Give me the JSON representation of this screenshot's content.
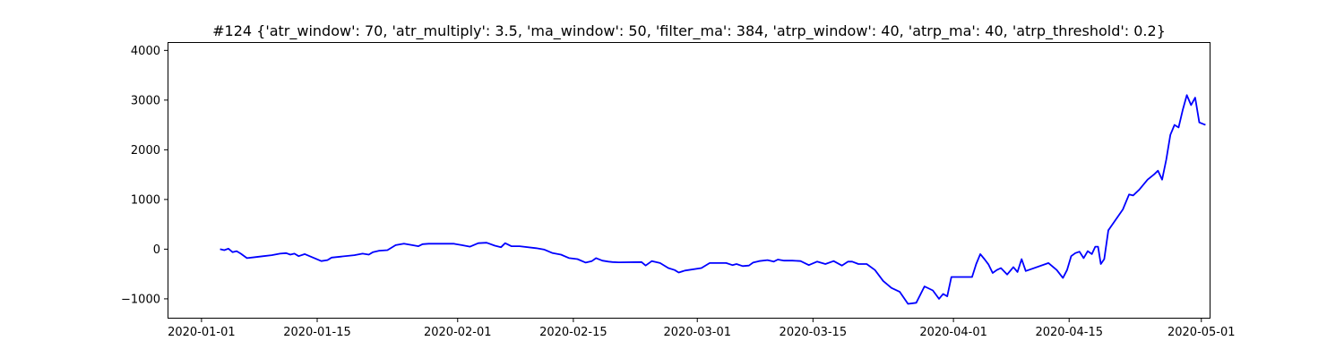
{
  "chart_data": {
    "type": "line",
    "title": "#124 {'atr_window': 70, 'atr_multiply': 3.5, 'ma_window': 50, 'filter_ma': 384, 'atrp_window': 40, 'atrp_ma': 40, 'atrp_threshold': 0.2}",
    "xlabel": "",
    "ylabel": "",
    "x_ticks": [
      "2020-01-01",
      "2020-01-15",
      "2020-02-01",
      "2020-02-15",
      "2020-03-01",
      "2020-03-15",
      "2020-04-01",
      "2020-04-15",
      "2020-05-01"
    ],
    "y_ticks": [
      -1000,
      0,
      1000,
      2000,
      3000,
      4000
    ],
    "xlim": [
      "2019-12-28",
      "2020-05-02"
    ],
    "ylim": [
      -1380,
      4150
    ],
    "grid": false,
    "line_color": "#0000ff",
    "series": [
      {
        "points": [
          [
            "2020-01-03",
            0
          ],
          [
            "2020-01-03",
            -20
          ],
          [
            "2020-01-04",
            10
          ],
          [
            "2020-01-04",
            -60
          ],
          [
            "2020-01-05",
            -40
          ],
          [
            "2020-01-05",
            -90
          ],
          [
            "2020-01-06",
            -180
          ],
          [
            "2020-01-07",
            -160
          ],
          [
            "2020-01-08",
            -140
          ],
          [
            "2020-01-09",
            -120
          ],
          [
            "2020-01-10",
            -90
          ],
          [
            "2020-01-11",
            -80
          ],
          [
            "2020-01-11",
            -110
          ],
          [
            "2020-01-12",
            -90
          ],
          [
            "2020-01-12",
            -140
          ],
          [
            "2020-01-13",
            -100
          ],
          [
            "2020-01-14",
            -170
          ],
          [
            "2020-01-15",
            -240
          ],
          [
            "2020-01-16",
            -220
          ],
          [
            "2020-01-16",
            -170
          ],
          [
            "2020-01-19",
            -120
          ],
          [
            "2020-01-20",
            -90
          ],
          [
            "2020-01-21",
            -110
          ],
          [
            "2020-01-21",
            -60
          ],
          [
            "2020-01-22",
            -30
          ],
          [
            "2020-01-23",
            -20
          ],
          [
            "2020-01-24",
            80
          ],
          [
            "2020-01-25",
            110
          ],
          [
            "2020-01-26",
            80
          ],
          [
            "2020-01-27",
            60
          ],
          [
            "2020-01-27",
            100
          ],
          [
            "2020-01-28",
            110
          ],
          [
            "2020-01-31",
            110
          ],
          [
            "2020-02-01",
            80
          ],
          [
            "2020-02-02",
            50
          ],
          [
            "2020-02-03",
            120
          ],
          [
            "2020-02-04",
            130
          ],
          [
            "2020-02-05",
            70
          ],
          [
            "2020-02-06",
            40
          ],
          [
            "2020-02-06",
            120
          ],
          [
            "2020-02-07",
            60
          ],
          [
            "2020-02-08",
            60
          ],
          [
            "2020-02-10",
            20
          ],
          [
            "2020-02-11",
            -10
          ],
          [
            "2020-02-12",
            -80
          ],
          [
            "2020-02-13",
            -110
          ],
          [
            "2020-02-14",
            -180
          ],
          [
            "2020-02-15",
            -200
          ],
          [
            "2020-02-16",
            -270
          ],
          [
            "2020-02-17",
            -240
          ],
          [
            "2020-02-17",
            -180
          ],
          [
            "2020-02-18",
            -230
          ],
          [
            "2020-02-19",
            -250
          ],
          [
            "2020-02-19",
            -260
          ],
          [
            "2020-02-20",
            -265
          ],
          [
            "2020-02-23",
            -260
          ],
          [
            "2020-02-23",
            -330
          ],
          [
            "2020-02-24",
            -240
          ],
          [
            "2020-02-25",
            -280
          ],
          [
            "2020-02-26",
            -380
          ],
          [
            "2020-02-27",
            -420
          ],
          [
            "2020-02-27",
            -470
          ],
          [
            "2020-02-28",
            -430
          ],
          [
            "2020-03-01",
            -380
          ],
          [
            "2020-03-02",
            -280
          ],
          [
            "2020-03-04",
            -280
          ],
          [
            "2020-03-05",
            -320
          ],
          [
            "2020-03-05",
            -300
          ],
          [
            "2020-03-06",
            -340
          ],
          [
            "2020-03-07",
            -330
          ],
          [
            "2020-03-07",
            -270
          ],
          [
            "2020-03-08",
            -240
          ],
          [
            "2020-03-09",
            -220
          ],
          [
            "2020-03-10",
            -250
          ],
          [
            "2020-03-10",
            -210
          ],
          [
            "2020-03-11",
            -230
          ],
          [
            "2020-03-12",
            -230
          ],
          [
            "2020-03-13",
            -240
          ],
          [
            "2020-03-14",
            -320
          ],
          [
            "2020-03-15",
            -250
          ],
          [
            "2020-03-16",
            -300
          ],
          [
            "2020-03-17",
            -240
          ],
          [
            "2020-03-18",
            -330
          ],
          [
            "2020-03-19",
            -250
          ],
          [
            "2020-03-19",
            -250
          ],
          [
            "2020-03-20",
            -300
          ],
          [
            "2020-03-21",
            -300
          ],
          [
            "2020-03-22",
            -420
          ],
          [
            "2020-03-23",
            -640
          ],
          [
            "2020-03-24",
            -780
          ],
          [
            "2020-03-25",
            -860
          ],
          [
            "2020-03-26",
            -1100
          ],
          [
            "2020-03-27",
            -1080
          ],
          [
            "2020-03-28",
            -750
          ],
          [
            "2020-03-29",
            -830
          ],
          [
            "2020-03-30",
            -1000
          ],
          [
            "2020-03-30",
            -900
          ],
          [
            "2020-03-31",
            -950
          ],
          [
            "2020-03-31",
            -560
          ],
          [
            "2020-04-03",
            -560
          ],
          [
            "2020-04-03",
            -300
          ],
          [
            "2020-04-04",
            -100
          ],
          [
            "2020-04-04",
            -200
          ],
          [
            "2020-04-05",
            -310
          ],
          [
            "2020-04-05",
            -480
          ],
          [
            "2020-04-06",
            -420
          ],
          [
            "2020-04-06",
            -380
          ],
          [
            "2020-04-07",
            -510
          ],
          [
            "2020-04-08",
            -360
          ],
          [
            "2020-04-08",
            -460
          ],
          [
            "2020-04-09",
            -200
          ],
          [
            "2020-04-09",
            -440
          ],
          [
            "2020-04-12",
            -280
          ],
          [
            "2020-04-13",
            -420
          ],
          [
            "2020-04-14",
            -580
          ],
          [
            "2020-04-14",
            -420
          ],
          [
            "2020-04-15",
            -140
          ],
          [
            "2020-04-15",
            -80
          ],
          [
            "2020-04-16",
            -50
          ],
          [
            "2020-04-16",
            -180
          ],
          [
            "2020-04-17",
            -40
          ],
          [
            "2020-04-17",
            -100
          ],
          [
            "2020-04-18",
            50
          ],
          [
            "2020-04-18",
            50
          ],
          [
            "2020-04-18",
            -300
          ],
          [
            "2020-04-19",
            -200
          ],
          [
            "2020-04-19",
            380
          ],
          [
            "2020-04-21",
            800
          ],
          [
            "2020-04-22",
            1100
          ],
          [
            "2020-04-22",
            1080
          ],
          [
            "2020-04-23",
            1200
          ],
          [
            "2020-04-24",
            1400
          ],
          [
            "2020-04-25",
            1500
          ],
          [
            "2020-04-25",
            1580
          ],
          [
            "2020-04-26",
            1400
          ],
          [
            "2020-04-26",
            1800
          ],
          [
            "2020-04-27",
            2300
          ],
          [
            "2020-04-27",
            2500
          ],
          [
            "2020-04-28",
            2450
          ],
          [
            "2020-04-28",
            2800
          ],
          [
            "2020-04-29",
            3100
          ],
          [
            "2020-04-29",
            2900
          ],
          [
            "2020-04-30",
            3050
          ],
          [
            "2020-04-30",
            2550
          ],
          [
            "2020-05-01",
            2500
          ]
        ]
      }
    ]
  }
}
